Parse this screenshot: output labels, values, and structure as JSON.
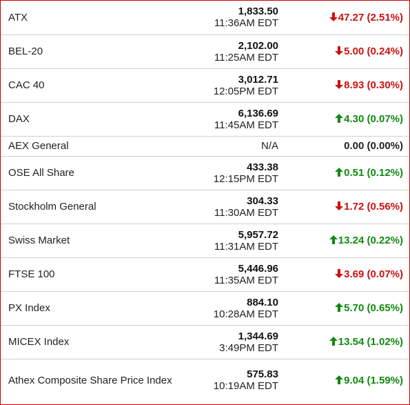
{
  "colors": {
    "border": "#cc0000",
    "down": "#cc1111",
    "up": "#118811",
    "divider": "#d0d0d0"
  },
  "rows": [
    {
      "name": "ATX",
      "value": "1,833.50",
      "time": "11:36AM EDT",
      "direction": "down",
      "change": "47.27 (2.51%)"
    },
    {
      "name": "BEL-20",
      "value": "2,102.00",
      "time": "11:25AM EDT",
      "direction": "down",
      "change": "5.00 (0.24%)"
    },
    {
      "name": "CAC 40",
      "value": "3,012.71",
      "time": "12:05PM EDT",
      "direction": "down",
      "change": "8.93 (0.30%)"
    },
    {
      "name": "DAX",
      "value": "6,136.69",
      "time": "11:45AM EDT",
      "direction": "up",
      "change": "4.30 (0.07%)"
    },
    {
      "name": "AEX General",
      "value": "N/A",
      "time": "",
      "direction": "none",
      "change": "0.00 (0.00%)"
    },
    {
      "name": "OSE All Share",
      "value": "433.38",
      "time": "12:15PM EDT",
      "direction": "up",
      "change": "0.51 (0.12%)"
    },
    {
      "name": "Stockholm General",
      "value": "304.33",
      "time": "11:30AM EDT",
      "direction": "down",
      "change": "1.72 (0.56%)"
    },
    {
      "name": "Swiss Market",
      "value": "5,957.72",
      "time": "11:31AM EDT",
      "direction": "up",
      "change": "13.24 (0.22%)"
    },
    {
      "name": "FTSE 100",
      "value": "5,446.96",
      "time": "11:35AM EDT",
      "direction": "down",
      "change": "3.69 (0.07%)"
    },
    {
      "name": "PX Index",
      "value": "884.10",
      "time": "10:28AM EDT",
      "direction": "up",
      "change": "5.70 (0.65%)"
    },
    {
      "name": "MICEX Index",
      "value": "1,344.69",
      "time": "3:49PM EDT",
      "direction": "up",
      "change": "13.54 (1.02%)"
    },
    {
      "name": "Athex Composite Share Price Index",
      "value": "575.83",
      "time": "10:19AM EDT",
      "direction": "up",
      "change": "9.04 (1.59%)"
    }
  ]
}
